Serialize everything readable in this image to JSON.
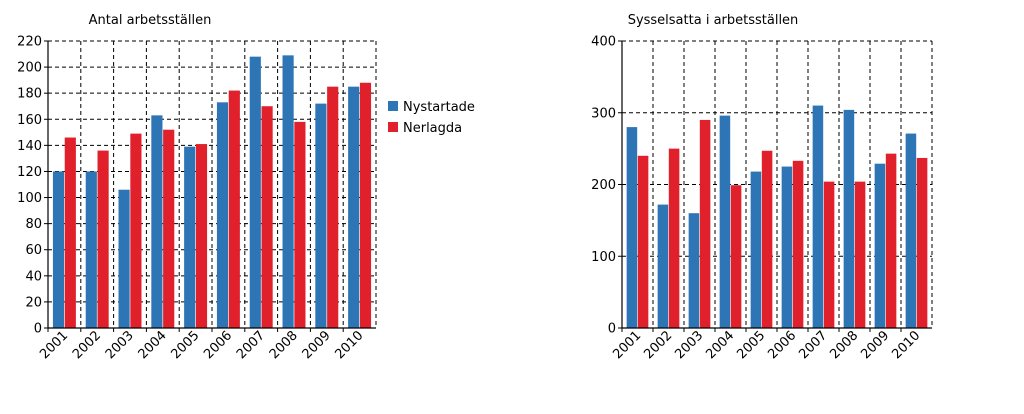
{
  "colors": {
    "nystartade": "#2e75b6",
    "nerlagda": "#e0202a"
  },
  "legend": {
    "items": [
      "Nystartade",
      "Nerlagda"
    ]
  },
  "chart_data": [
    {
      "type": "bar",
      "title": "Antal arbetsställen",
      "xlabel": "",
      "ylabel": "",
      "categories": [
        "2001",
        "2002",
        "2003",
        "2004",
        "2005",
        "2006",
        "2007",
        "2008",
        "2009",
        "2010"
      ],
      "series": [
        {
          "name": "Nystartade",
          "values": [
            120,
            120,
            106,
            163,
            139,
            173,
            208,
            209,
            172,
            185
          ]
        },
        {
          "name": "Nerlagda",
          "values": [
            146,
            136,
            149,
            152,
            141,
            182,
            170,
            158,
            185,
            188
          ]
        }
      ],
      "ylim": [
        0,
        220
      ],
      "yticks": [
        0,
        20,
        40,
        60,
        80,
        100,
        120,
        140,
        160,
        180,
        200,
        220
      ],
      "grid": true,
      "legend_position": "right"
    },
    {
      "type": "bar",
      "title": "Sysselsatta i arbetsställen",
      "xlabel": "",
      "ylabel": "",
      "categories": [
        "2001",
        "2002",
        "2003",
        "2004",
        "2005",
        "2006",
        "2007",
        "2008",
        "2009",
        "2010"
      ],
      "series": [
        {
          "name": "Nystartade",
          "values": [
            280,
            172,
            160,
            296,
            218,
            225,
            310,
            304,
            229,
            271
          ]
        },
        {
          "name": "Nerlagda",
          "values": [
            240,
            250,
            290,
            199,
            247,
            233,
            204,
            204,
            243,
            237
          ]
        }
      ],
      "ylim": [
        0,
        400
      ],
      "yticks": [
        0,
        100,
        200,
        300,
        400
      ],
      "grid": true
    }
  ]
}
